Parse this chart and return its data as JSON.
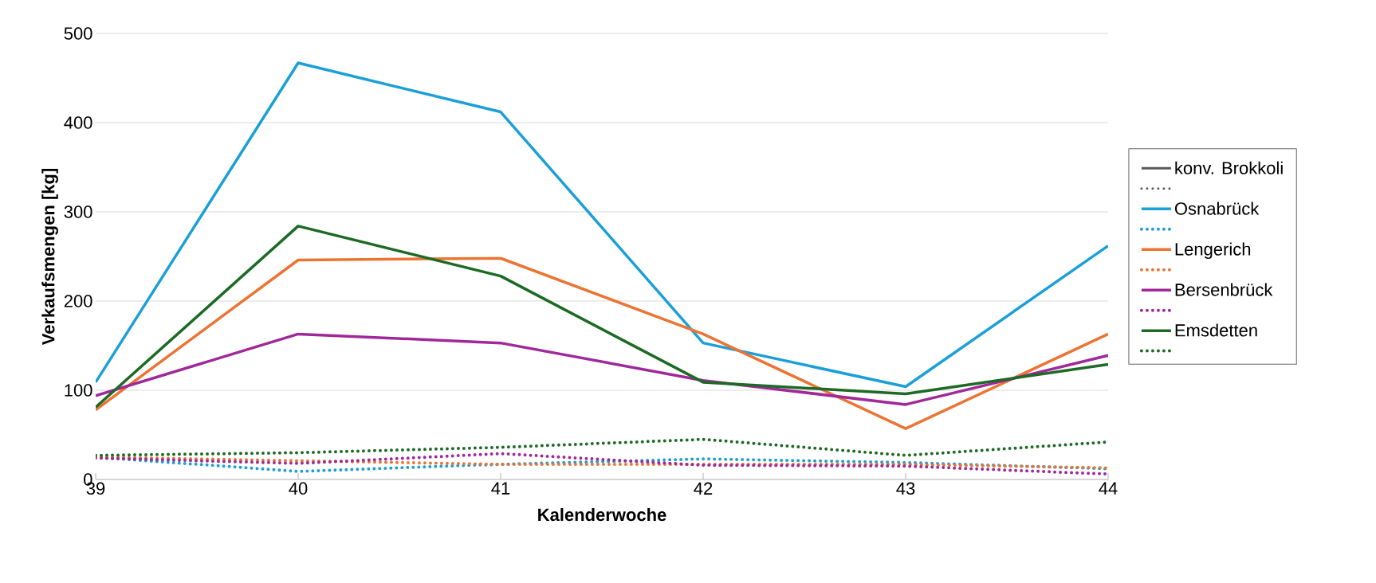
{
  "chart_data": {
    "type": "line",
    "xlabel": "Kalenderwoche",
    "ylabel": "Verkaufsmengen [kg]",
    "x": [
      39,
      40,
      41,
      42,
      43,
      44
    ],
    "xlim": [
      39,
      44
    ],
    "xticks": [
      39,
      40,
      41,
      42,
      43,
      44
    ],
    "ylim": [
      0,
      500
    ],
    "yticks": [
      0,
      100,
      200,
      300,
      400,
      500
    ],
    "grid": "y",
    "legend": "right",
    "marker": "none",
    "annotations": [
      "konv. Brokkoli"
    ],
    "series": [
      {
        "name": "Osnabrück",
        "color": "#1a9fd8",
        "line_style": "solid",
        "values": [
          109,
          467,
          412,
          153,
          104,
          262
        ]
      },
      {
        "color": "#1a9fd8",
        "line_style": "dotted",
        "values": [
          25,
          9,
          17,
          23,
          19,
          12
        ]
      },
      {
        "name": "Lengerich",
        "color": "#ec7433",
        "line_style": "solid",
        "values": [
          78,
          246,
          248,
          163,
          57,
          163
        ]
      },
      {
        "color": "#ec7433",
        "line_style": "dotted",
        "values": [
          25,
          21,
          17,
          17,
          17,
          13
        ]
      },
      {
        "name": "Bersenbrück",
        "color": "#a0289a",
        "line_style": "solid",
        "values": [
          94,
          163,
          153,
          111,
          84,
          139
        ]
      },
      {
        "color": "#a0289a",
        "line_style": "dotted",
        "values": [
          24,
          18,
          29,
          16,
          15,
          6
        ]
      },
      {
        "name": "Emsdetten",
        "color": "#1c6a24",
        "line_style": "solid",
        "values": [
          81,
          284,
          228,
          109,
          96,
          129
        ]
      },
      {
        "color": "#1c6a24",
        "line_style": "dotted",
        "values": [
          27,
          30,
          36,
          45,
          27,
          42
        ]
      }
    ]
  }
}
